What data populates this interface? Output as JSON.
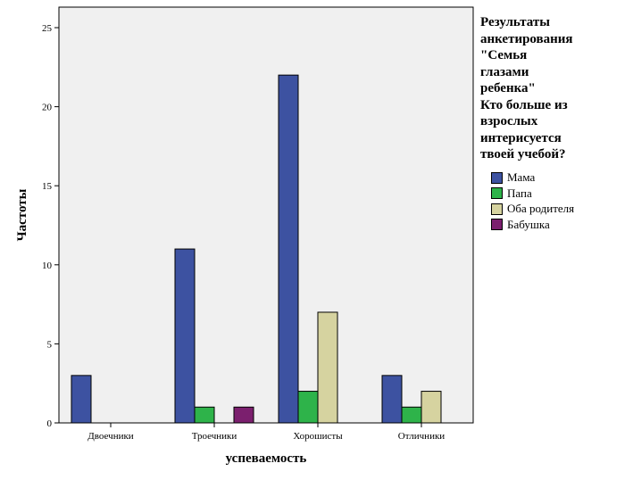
{
  "chart_data": {
    "type": "bar",
    "title": "",
    "xlabel": "успеваемость",
    "ylabel": "Частоты",
    "categories": [
      "Двоечники",
      "Троечники",
      "Хорошисты",
      "Отличники"
    ],
    "ylim": [
      0,
      25
    ],
    "yticks": [
      0,
      5,
      10,
      15,
      20,
      25
    ],
    "grid": false,
    "legend_placement": "right",
    "legend_title": "Результаты\nанкетирования\n\"Семья\nглазами\nребенка\"\nКто больше из\nвзрослых\nинтерисуется\nтвоей учебой?",
    "series": [
      {
        "name": "Мама",
        "color": "#3d52a1",
        "values": [
          3,
          11,
          22,
          3
        ]
      },
      {
        "name": "Папа",
        "color": "#2eb34a",
        "values": [
          0,
          1,
          2,
          1
        ]
      },
      {
        "name": "Оба родителя",
        "color": "#d6d3a0",
        "values": [
          0,
          0,
          7,
          2
        ]
      },
      {
        "name": "Бабушка",
        "color": "#7b1f6e",
        "values": [
          0,
          1,
          0,
          0
        ]
      }
    ],
    "plot_background": "#f0f0f0"
  }
}
